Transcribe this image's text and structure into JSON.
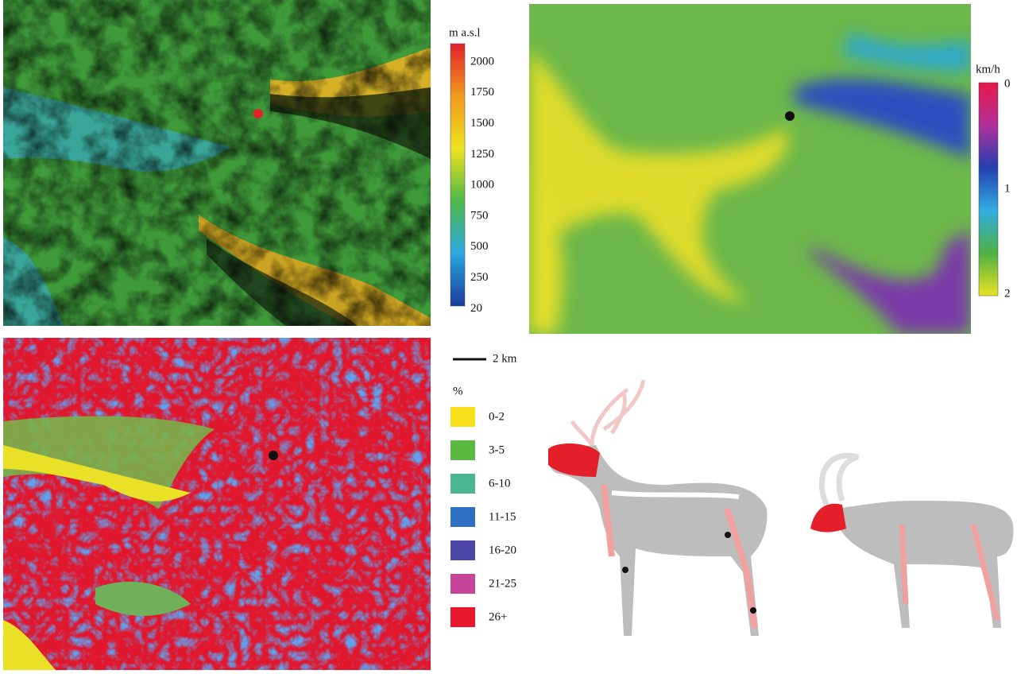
{
  "elevation_legend": {
    "title": "m a.s.l",
    "ticks": [
      2000,
      1750,
      1500,
      1250,
      1000,
      750,
      500,
      250,
      20
    ],
    "colors": [
      "#e3202a",
      "#f29a1f",
      "#eee21e",
      "#4db848",
      "#2aa8e0",
      "#1a3c9c"
    ]
  },
  "speed_legend": {
    "title": "km/h",
    "ticks": [
      0,
      1,
      2
    ],
    "colors": [
      "#e8184a",
      "#b0309a",
      "#2340b0",
      "#31aee2",
      "#4fb043",
      "#e8e324"
    ]
  },
  "scale_bar": {
    "label": "2 km"
  },
  "slope_legend": {
    "title": "%",
    "classes": [
      {
        "label": "0-2",
        "color": "#f7e01a"
      },
      {
        "label": "3-5",
        "color": "#5bb840"
      },
      {
        "label": "6-10",
        "color": "#4bb68f"
      },
      {
        "label": "11-15",
        "color": "#2e6fc2"
      },
      {
        "label": "16-20",
        "color": "#4d45a8"
      },
      {
        "label": "21-25",
        "color": "#c64598"
      },
      {
        "label": "26+",
        "color": "#e8172b"
      }
    ]
  }
}
